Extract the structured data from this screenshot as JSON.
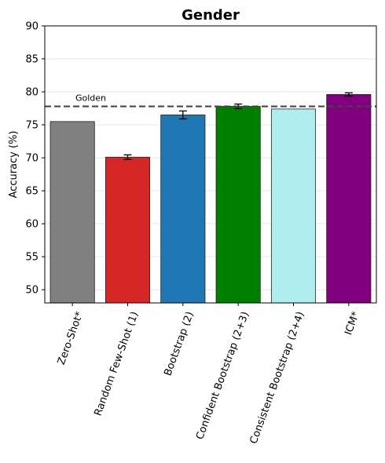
{
  "chart_data": {
    "type": "bar",
    "title": "Gender",
    "xlabel": "",
    "ylabel": "Accuracy (%)",
    "ylim": [
      48,
      90
    ],
    "yticks": [
      50,
      55,
      60,
      65,
      70,
      75,
      80,
      85,
      90
    ],
    "grid": "horizontal",
    "categories": [
      "Zero-Shot*",
      "Random Few-Shot (1)",
      "Bootstrap (2)",
      "Confident Bootstrap (2+3)",
      "Consistent Bootstrap (2+4)",
      "ICM*"
    ],
    "values": [
      75.5,
      70.1,
      76.5,
      77.8,
      77.4,
      79.6
    ],
    "errors": [
      null,
      0.35,
      0.6,
      0.35,
      null,
      0.25
    ],
    "colors": [
      "#808080",
      "#d62728",
      "#1f77b4",
      "#008000",
      "#afeeee",
      "#800080"
    ],
    "reference_line": {
      "label": "Golden",
      "value": 77.8,
      "style": "dashed",
      "color": "#444444"
    }
  }
}
